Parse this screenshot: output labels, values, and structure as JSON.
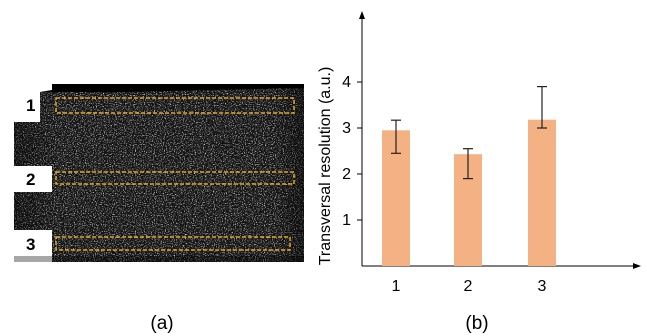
{
  "panel_a": {
    "label": "(a)",
    "regions": [
      "1",
      "2",
      "3"
    ],
    "box_color": "#e6a824"
  },
  "panel_b": {
    "label": "(b)"
  },
  "chart_data": {
    "type": "bar",
    "categories": [
      "1",
      "2",
      "3"
    ],
    "values": [
      2.95,
      2.43,
      3.18
    ],
    "error_low": [
      2.45,
      1.9,
      3.0
    ],
    "error_high": [
      3.17,
      2.55,
      3.9
    ],
    "title": "",
    "xlabel": "",
    "ylabel": "Transversal resolution (a.u.)",
    "yticks": [
      "1",
      "2",
      "3",
      "4"
    ],
    "ylim": [
      0,
      5.3
    ],
    "bar_color": "#f4b183",
    "grid": false,
    "legend": "none"
  }
}
